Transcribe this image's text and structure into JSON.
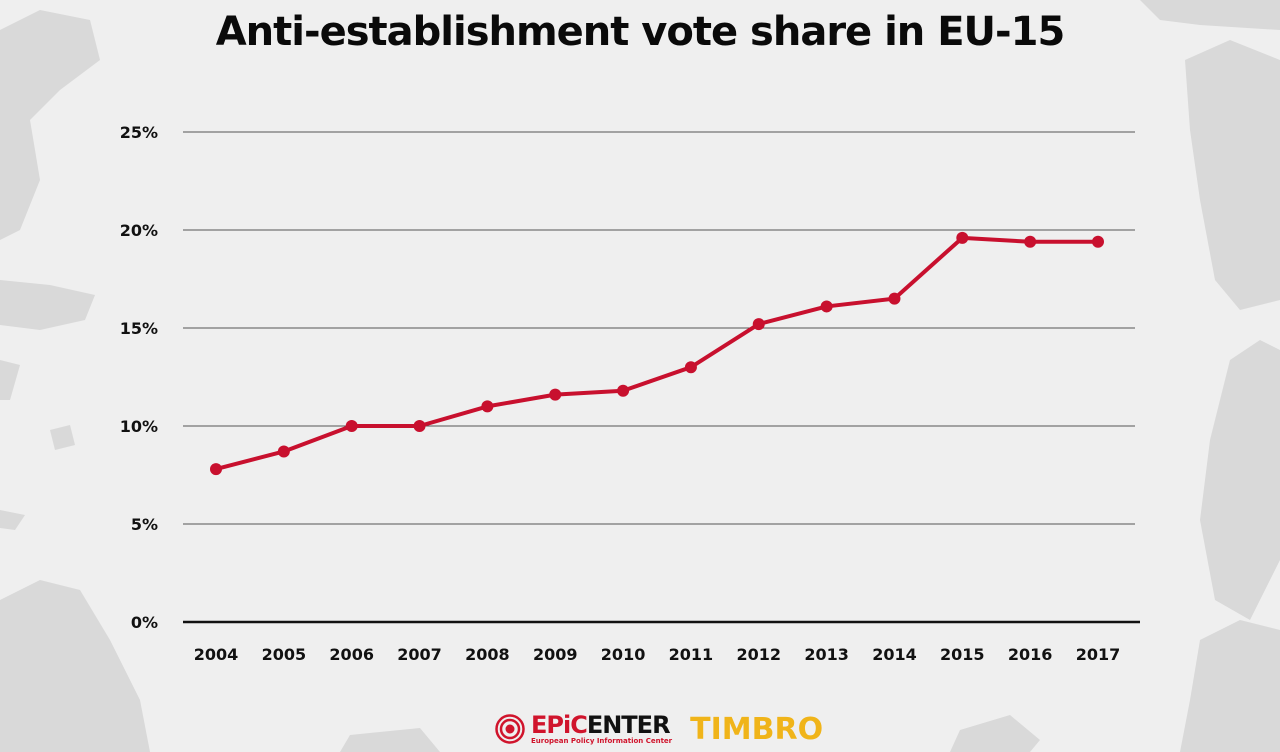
{
  "chart_data": {
    "type": "line",
    "title": "Anti-establishment vote share in EU-15",
    "xlabel": "",
    "ylabel": "",
    "x": [
      "2004",
      "2005",
      "2006",
      "2007",
      "2008",
      "2009",
      "2010",
      "2011",
      "2012",
      "2013",
      "2014",
      "2015",
      "2016",
      "2017"
    ],
    "series": [
      {
        "values": [
          7.8,
          8.7,
          10.0,
          10.0,
          11.0,
          11.6,
          11.8,
          13.0,
          15.2,
          16.1,
          16.5,
          19.6,
          19.4,
          19.4
        ]
      }
    ],
    "ylim": [
      0,
      25
    ],
    "yticks": [
      "0%",
      "5%",
      "10%",
      "15%",
      "20%",
      "25%"
    ],
    "ytick_values": [
      0,
      5,
      10,
      15,
      20,
      25
    ],
    "grid": true,
    "legend": "none",
    "colors": {
      "line": "#c8102e",
      "grid": "#555555",
      "axis": "#111111"
    }
  },
  "logos": {
    "epicenter_prefix": "EPiC",
    "epicenter_suffix": "ENTER",
    "epicenter_subtitle": "European Policy Information Center",
    "timbro": "TIMBRO",
    "colors": {
      "epicenter_red": "#d0142c",
      "timbro_yellow": "#f0b419"
    }
  }
}
